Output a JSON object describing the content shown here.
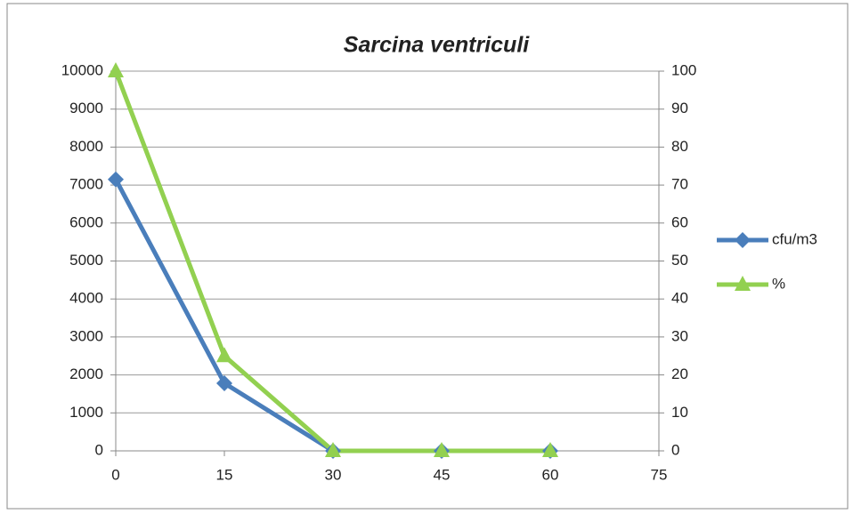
{
  "chart_data": {
    "type": "line",
    "title": "Sarcina ventriculi",
    "x": [
      0,
      15,
      30,
      45,
      60
    ],
    "series": [
      {
        "name": "cfu/m3",
        "color": "#4a7ebb",
        "marker": "diamond",
        "values": [
          7150,
          1780,
          0,
          0,
          0
        ]
      },
      {
        "name": "%",
        "color": "#92d050",
        "marker": "triangle",
        "axis": "y2",
        "values": [
          100,
          25,
          0,
          0,
          0
        ]
      }
    ],
    "xlim": [
      0,
      75
    ],
    "xticks": [
      0,
      15,
      30,
      45,
      60,
      75
    ],
    "ylim": [
      0,
      10000
    ],
    "yticks": [
      0,
      1000,
      2000,
      3000,
      4000,
      5000,
      6000,
      7000,
      8000,
      9000,
      10000
    ],
    "y2lim": [
      0,
      100
    ],
    "y2ticks": [
      0,
      10,
      20,
      30,
      40,
      50,
      60,
      70,
      80,
      90,
      100
    ],
    "grid": true,
    "legend": "right"
  }
}
